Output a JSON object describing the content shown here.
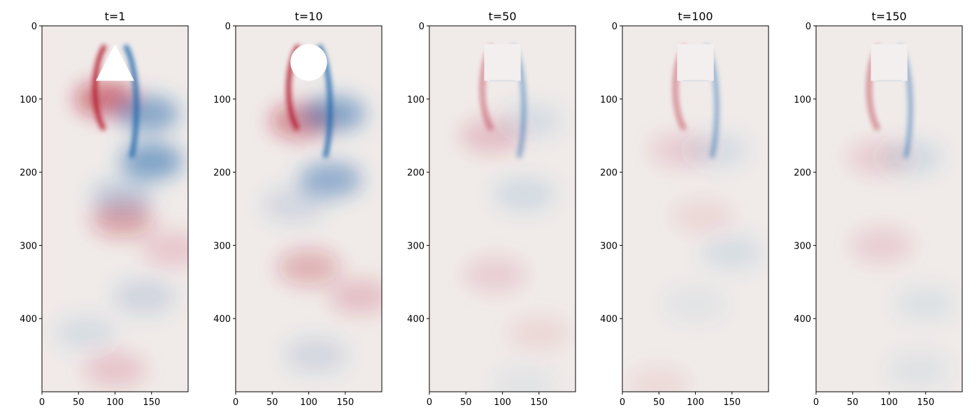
{
  "chart_data": [
    {
      "type": "heatmap",
      "title": "t=1",
      "obstacle": "triangle",
      "xlim": [
        0,
        200
      ],
      "ylim": [
        500,
        0
      ],
      "xticks": [
        0,
        50,
        100,
        150
      ],
      "yticks": [
        0,
        100,
        200,
        300,
        400
      ],
      "colormap": "diverging red-white-blue (red positive, blue negative)",
      "vortices": [
        {
          "x": 88,
          "y": 100,
          "sign": 1,
          "strength": 0.55
        },
        {
          "x": 145,
          "y": 120,
          "sign": -1,
          "strength": 0.5
        },
        {
          "x": 150,
          "y": 185,
          "sign": -1,
          "strength": 0.55
        },
        {
          "x": 110,
          "y": 235,
          "sign": -1,
          "strength": 0.25
        },
        {
          "x": 110,
          "y": 265,
          "sign": 1,
          "strength": 0.32
        },
        {
          "x": 180,
          "y": 305,
          "sign": 1,
          "strength": 0.15
        },
        {
          "x": 140,
          "y": 370,
          "sign": -1,
          "strength": 0.16
        },
        {
          "x": 60,
          "y": 420,
          "sign": -1,
          "strength": 0.1
        },
        {
          "x": 100,
          "y": 470,
          "sign": 1,
          "strength": 0.16
        }
      ]
    },
    {
      "type": "heatmap",
      "title": "t=10",
      "obstacle": "circle",
      "xlim": [
        0,
        200
      ],
      "ylim": [
        500,
        0
      ],
      "xticks": [
        0,
        50,
        100,
        150
      ],
      "yticks": [
        0,
        100,
        200,
        300,
        400
      ],
      "colormap": "diverging red-white-blue (red positive, blue negative)",
      "vortices": [
        {
          "x": 90,
          "y": 130,
          "sign": 1,
          "strength": 0.45
        },
        {
          "x": 135,
          "y": 120,
          "sign": -1,
          "strength": 0.5
        },
        {
          "x": 130,
          "y": 210,
          "sign": -1,
          "strength": 0.45
        },
        {
          "x": 80,
          "y": 245,
          "sign": -1,
          "strength": 0.15
        },
        {
          "x": 100,
          "y": 330,
          "sign": 1,
          "strength": 0.28
        },
        {
          "x": 170,
          "y": 370,
          "sign": 1,
          "strength": 0.18
        },
        {
          "x": 110,
          "y": 450,
          "sign": -1,
          "strength": 0.15
        }
      ]
    },
    {
      "type": "heatmap",
      "title": "t=50",
      "obstacle": "square",
      "xlim": [
        0,
        200
      ],
      "ylim": [
        500,
        0
      ],
      "xticks": [
        0,
        50,
        100,
        150
      ],
      "yticks": [
        0,
        100,
        200,
        300,
        400
      ],
      "colormap": "diverging red-white-blue (red positive, blue negative)",
      "vortices": [
        {
          "x": 85,
          "y": 150,
          "sign": 1,
          "strength": 0.18
        },
        {
          "x": 140,
          "y": 130,
          "sign": -1,
          "strength": 0.1
        },
        {
          "x": 130,
          "y": 230,
          "sign": -1,
          "strength": 0.12
        },
        {
          "x": 90,
          "y": 340,
          "sign": 1,
          "strength": 0.12
        },
        {
          "x": 150,
          "y": 420,
          "sign": 1,
          "strength": 0.08
        },
        {
          "x": 130,
          "y": 490,
          "sign": -1,
          "strength": 0.06
        }
      ]
    },
    {
      "type": "heatmap",
      "title": "t=100",
      "obstacle": "square",
      "xlim": [
        0,
        200
      ],
      "ylim": [
        500,
        0
      ],
      "xticks": [
        0,
        50,
        100,
        150
      ],
      "yticks": [
        0,
        100,
        200,
        300,
        400
      ],
      "colormap": "diverging red-white-blue (red positive, blue negative)",
      "vortices": [
        {
          "x": 80,
          "y": 170,
          "sign": 1,
          "strength": 0.12
        },
        {
          "x": 130,
          "y": 170,
          "sign": -1,
          "strength": 0.1
        },
        {
          "x": 150,
          "y": 310,
          "sign": -1,
          "strength": 0.1
        },
        {
          "x": 110,
          "y": 260,
          "sign": 1,
          "strength": 0.08
        },
        {
          "x": 100,
          "y": 380,
          "sign": -1,
          "strength": 0.06
        },
        {
          "x": 50,
          "y": 490,
          "sign": 1,
          "strength": 0.07
        }
      ]
    },
    {
      "type": "heatmap",
      "title": "t=150",
      "obstacle": "square",
      "xlim": [
        0,
        200
      ],
      "ylim": [
        500,
        0
      ],
      "xticks": [
        0,
        50,
        100,
        150
      ],
      "yticks": [
        0,
        100,
        200,
        300,
        400
      ],
      "colormap": "diverging red-white-blue (red positive, blue negative)",
      "vortices": [
        {
          "x": 85,
          "y": 180,
          "sign": 1,
          "strength": 0.12
        },
        {
          "x": 130,
          "y": 180,
          "sign": -1,
          "strength": 0.12
        },
        {
          "x": 90,
          "y": 300,
          "sign": 1,
          "strength": 0.12
        },
        {
          "x": 150,
          "y": 380,
          "sign": -1,
          "strength": 0.08
        },
        {
          "x": 140,
          "y": 470,
          "sign": -1,
          "strength": 0.07
        }
      ]
    }
  ]
}
